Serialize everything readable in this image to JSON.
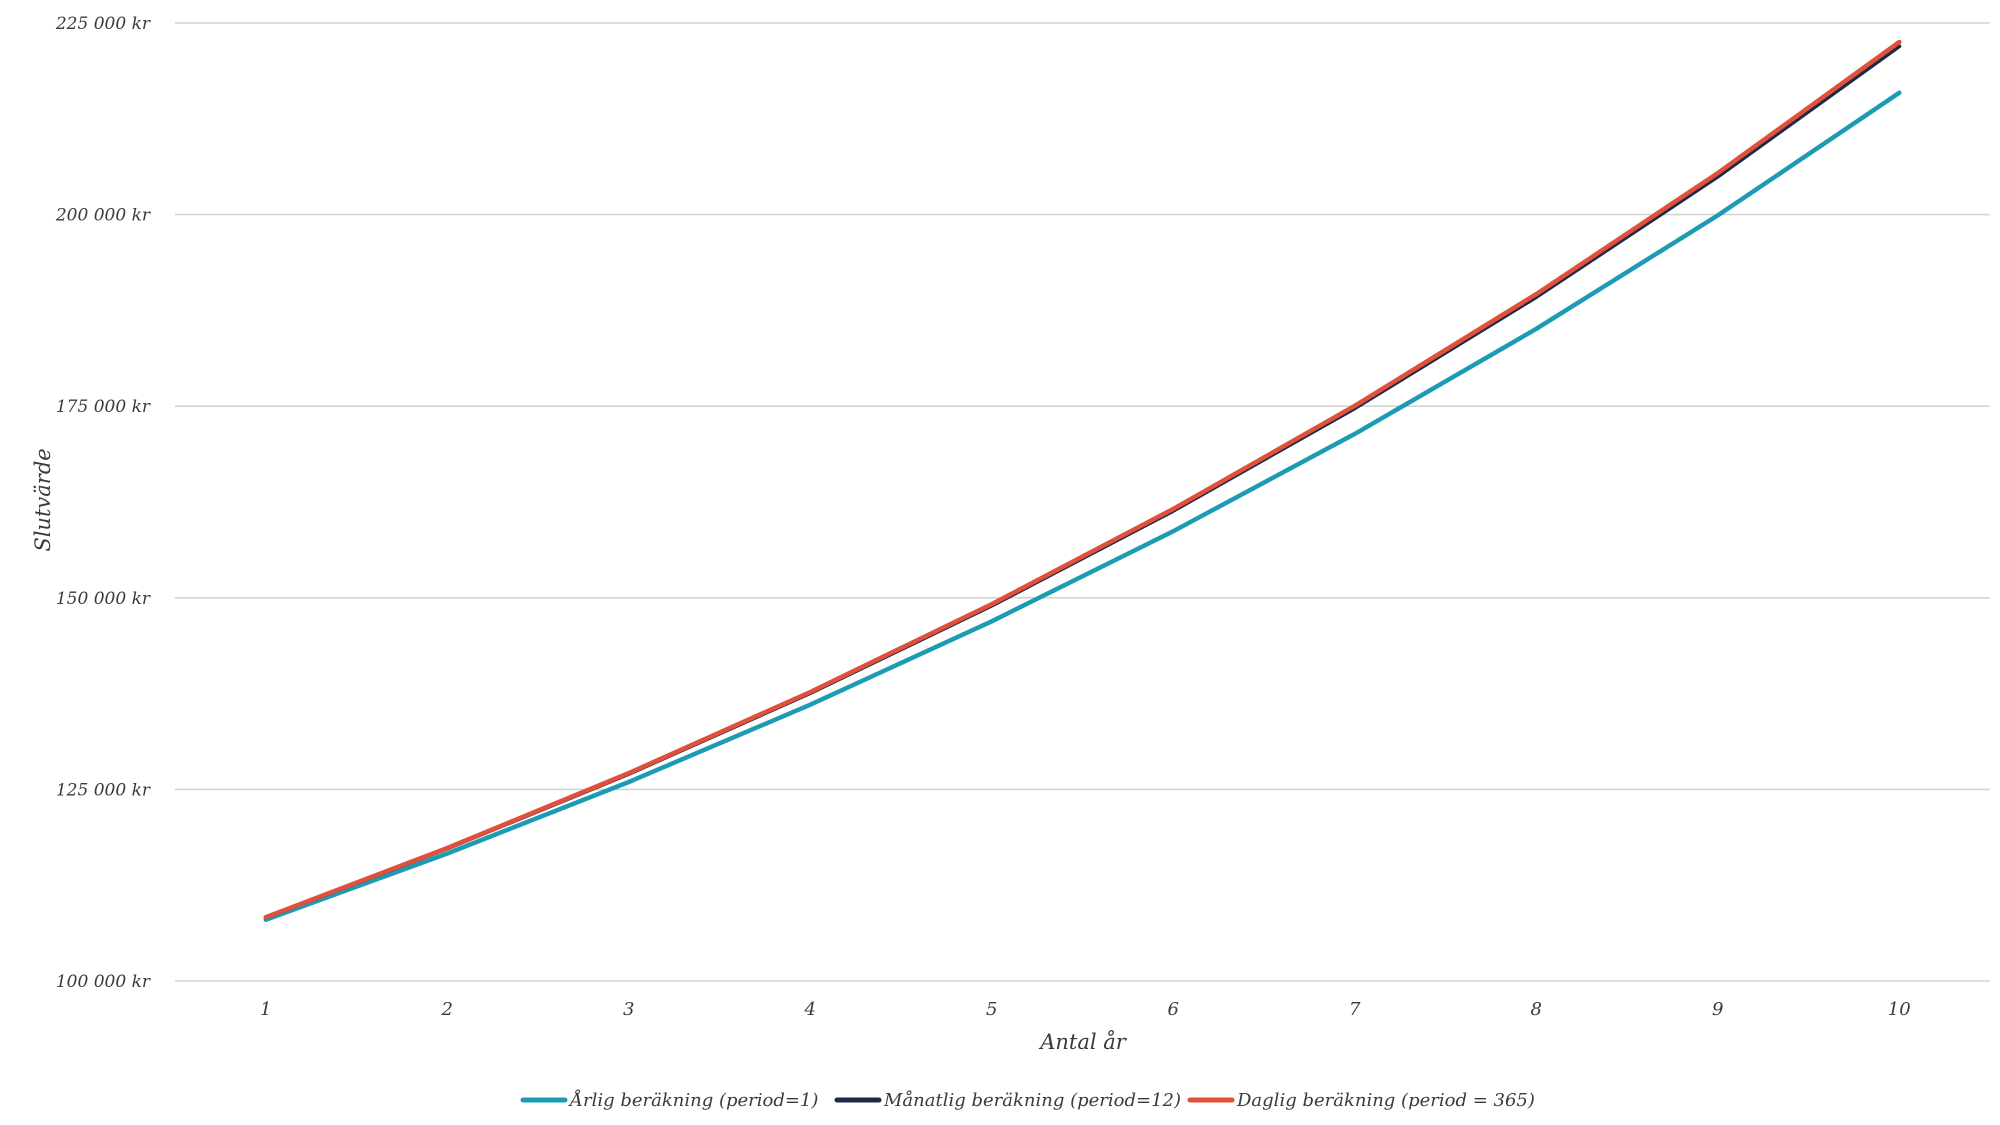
{
  "chart_data": {
    "type": "line",
    "xlabel": "Antal år",
    "ylabel": "Slutvärde",
    "ylim": [
      100000,
      225000
    ],
    "y_ticks": [
      100000,
      125000,
      150000,
      175000,
      200000,
      225000
    ],
    "y_tick_labels": [
      "100 000 kr",
      "125 000 kr",
      "150 000 kr",
      "175 000 kr",
      "200 000 kr",
      "225 000 kr"
    ],
    "x": [
      1,
      2,
      3,
      4,
      5,
      6,
      7,
      8,
      9,
      10
    ],
    "x_tick_labels": [
      "1",
      "2",
      "3",
      "4",
      "5",
      "6",
      "7",
      "8",
      "9",
      "10"
    ],
    "grid": "horizontal",
    "legend_position": "bottom",
    "series": [
      {
        "name": "Årlig beräkning (period=1)",
        "color": "#1e9bb4",
        "values": [
          108000,
          116640,
          125971,
          136049,
          146933,
          158687,
          171382,
          185093,
          199900,
          215892
        ]
      },
      {
        "name": "Månatlig beräkning (period=12)",
        "color": "#1b2a4a",
        "values": [
          108300,
          117289,
          127024,
          137567,
          148985,
          161350,
          174742,
          189246,
          204953,
          221964
        ]
      },
      {
        "name": "Daglig beräkning (period = 365)",
        "color": "#e0503a",
        "values": [
          108328,
          117349,
          127121,
          137707,
          149174,
          161596,
          175053,
          189630,
          205421,
          222527
        ]
      }
    ]
  }
}
